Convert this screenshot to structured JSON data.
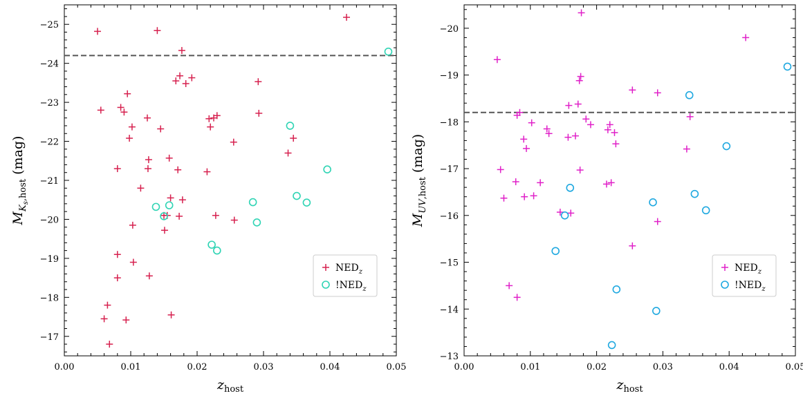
{
  "chart_data": [
    {
      "type": "scatter",
      "xlabel": "z",
      "xlabel_sub": "host",
      "ylabel_main": "M",
      "ylabel_sub": "K",
      "ylabel_sub2": "s",
      "ylabel_sub_rest": ",host",
      "ylabel_unit": "(mag)",
      "xlim": [
        0.0,
        0.05
      ],
      "ylim": [
        -16.5,
        -25.5
      ],
      "y_inverted": true,
      "xticks": [
        0.0,
        0.01,
        0.02,
        0.03,
        0.04,
        0.05
      ],
      "xtick_labels": [
        "0.00",
        "0.01",
        "0.02",
        "0.03",
        "0.04",
        "0.05"
      ],
      "yticks": [
        -17,
        -18,
        -19,
        -20,
        -21,
        -22,
        -23,
        -24,
        -25
      ],
      "ytick_labels": [
        "−17",
        "−18",
        "−19",
        "−20",
        "−21",
        "−22",
        "−23",
        "−24",
        "−25"
      ],
      "hline": -24.2,
      "hline_color": "#555555",
      "legend_loc": "lower right",
      "series": [
        {
          "name": "NED",
          "name_sub": "z",
          "marker": "plus",
          "color": "#d6204e",
          "points": [
            [
              0.005,
              -24.82
            ],
            [
              0.0055,
              -22.8
            ],
            [
              0.006,
              -17.45
            ],
            [
              0.0065,
              -17.8
            ],
            [
              0.0068,
              -16.8
            ],
            [
              0.008,
              -21.3
            ],
            [
              0.008,
              -19.1
            ],
            [
              0.008,
              -18.5
            ],
            [
              0.0085,
              -22.87
            ],
            [
              0.009,
              -22.75
            ],
            [
              0.0093,
              -17.42
            ],
            [
              0.0095,
              -23.22
            ],
            [
              0.0098,
              -22.08
            ],
            [
              0.0102,
              -22.37
            ],
            [
              0.0103,
              -19.85
            ],
            [
              0.0104,
              -18.9
            ],
            [
              0.0115,
              -20.8
            ],
            [
              0.0125,
              -22.6
            ],
            [
              0.0126,
              -21.3
            ],
            [
              0.0127,
              -21.53
            ],
            [
              0.0128,
              -18.55
            ],
            [
              0.014,
              -24.84
            ],
            [
              0.0145,
              -22.32
            ],
            [
              0.015,
              -20.1
            ],
            [
              0.0151,
              -19.72
            ],
            [
              0.0155,
              -20.1
            ],
            [
              0.0158,
              -21.57
            ],
            [
              0.016,
              -20.55
            ],
            [
              0.0161,
              -17.55
            ],
            [
              0.0168,
              -23.55
            ],
            [
              0.0171,
              -21.27
            ],
            [
              0.0173,
              -20.08
            ],
            [
              0.0174,
              -23.68
            ],
            [
              0.0177,
              -24.33
            ],
            [
              0.0178,
              -20.5
            ],
            [
              0.0183,
              -23.48
            ],
            [
              0.0192,
              -23.63
            ],
            [
              0.0215,
              -21.22
            ],
            [
              0.0218,
              -22.58
            ],
            [
              0.022,
              -22.37
            ],
            [
              0.0225,
              -22.6
            ],
            [
              0.0228,
              -20.1
            ],
            [
              0.023,
              -22.66
            ],
            [
              0.0255,
              -21.98
            ],
            [
              0.0256,
              -19.98
            ],
            [
              0.0292,
              -23.53
            ],
            [
              0.0293,
              -22.72
            ],
            [
              0.0337,
              -21.7
            ],
            [
              0.0345,
              -22.08
            ],
            [
              0.0425,
              -25.18
            ]
          ]
        },
        {
          "name": "!NED",
          "name_sub": "z",
          "marker": "circle",
          "color": "#2fd4b4",
          "points": [
            [
              0.0138,
              -20.32
            ],
            [
              0.015,
              -20.08
            ],
            [
              0.0158,
              -20.36
            ],
            [
              0.0222,
              -19.35
            ],
            [
              0.023,
              -19.2
            ],
            [
              0.0284,
              -20.44
            ],
            [
              0.029,
              -19.92
            ],
            [
              0.034,
              -22.4
            ],
            [
              0.035,
              -20.6
            ],
            [
              0.0365,
              -20.43
            ],
            [
              0.0396,
              -21.28
            ],
            [
              0.0488,
              -24.3
            ]
          ]
        }
      ]
    },
    {
      "type": "scatter",
      "xlabel": "z",
      "xlabel_sub": "host",
      "ylabel_main": "M",
      "ylabel_sub": "UV",
      "ylabel_sub2": "",
      "ylabel_sub_rest": ",host",
      "ylabel_unit": "(mag)",
      "xlim": [
        0.0,
        0.05
      ],
      "ylim": [
        -13.0,
        -20.5
      ],
      "y_inverted": true,
      "xticks": [
        0.0,
        0.01,
        0.02,
        0.03,
        0.04,
        0.05
      ],
      "xtick_labels": [
        "0.00",
        "0.01",
        "0.02",
        "0.03",
        "0.04",
        "0.05"
      ],
      "yticks": [
        -13,
        -14,
        -15,
        -16,
        -17,
        -18,
        -19,
        -20
      ],
      "ytick_labels": [
        "−13",
        "−14",
        "−15",
        "−16",
        "−17",
        "−18",
        "−19",
        "−20"
      ],
      "hline": -18.2,
      "hline_color": "#555555",
      "legend_loc": "lower right",
      "series": [
        {
          "name": "NED",
          "name_sub": "z",
          "marker": "plus",
          "color": "#e020c8",
          "points": [
            [
              0.005,
              -19.33
            ],
            [
              0.0055,
              -16.98
            ],
            [
              0.006,
              -16.37
            ],
            [
              0.0068,
              -14.5
            ],
            [
              0.0078,
              -16.72
            ],
            [
              0.008,
              -18.14
            ],
            [
              0.008,
              -14.25
            ],
            [
              0.0084,
              -18.2
            ],
            [
              0.009,
              -17.63
            ],
            [
              0.0091,
              -16.4
            ],
            [
              0.0094,
              -17.43
            ],
            [
              0.0102,
              -17.98
            ],
            [
              0.0105,
              -16.42
            ],
            [
              0.0115,
              -16.7
            ],
            [
              0.0125,
              -17.85
            ],
            [
              0.0128,
              -17.75
            ],
            [
              0.0145,
              -16.07
            ],
            [
              0.0158,
              -18.35
            ],
            [
              0.0161,
              -16.05
            ],
            [
              0.0157,
              -17.67
            ],
            [
              0.0168,
              -17.7
            ],
            [
              0.0172,
              -18.38
            ],
            [
              0.0174,
              -18.88
            ],
            [
              0.0176,
              -18.97
            ],
            [
              0.0175,
              -16.97
            ],
            [
              0.0177,
              -20.33
            ],
            [
              0.0184,
              -18.06
            ],
            [
              0.0191,
              -17.94
            ],
            [
              0.0215,
              -16.67
            ],
            [
              0.0217,
              -17.83
            ],
            [
              0.022,
              -17.94
            ],
            [
              0.0222,
              -16.7
            ],
            [
              0.0227,
              -17.77
            ],
            [
              0.0229,
              -17.53
            ],
            [
              0.0254,
              -18.68
            ],
            [
              0.0254,
              -15.35
            ],
            [
              0.0292,
              -18.62
            ],
            [
              0.0292,
              -15.87
            ],
            [
              0.0336,
              -17.42
            ],
            [
              0.0341,
              -18.11
            ],
            [
              0.0425,
              -19.8
            ]
          ]
        },
        {
          "name": "!NED",
          "name_sub": "z",
          "marker": "circle",
          "color": "#1ea8e0",
          "points": [
            [
              0.0138,
              -15.24
            ],
            [
              0.0152,
              -16.0
            ],
            [
              0.016,
              -16.59
            ],
            [
              0.0223,
              -13.23
            ],
            [
              0.023,
              -14.42
            ],
            [
              0.0285,
              -16.28
            ],
            [
              0.029,
              -13.96
            ],
            [
              0.034,
              -18.57
            ],
            [
              0.0348,
              -16.46
            ],
            [
              0.0365,
              -16.11
            ],
            [
              0.0396,
              -17.48
            ],
            [
              0.0488,
              -19.18
            ]
          ]
        }
      ]
    }
  ]
}
